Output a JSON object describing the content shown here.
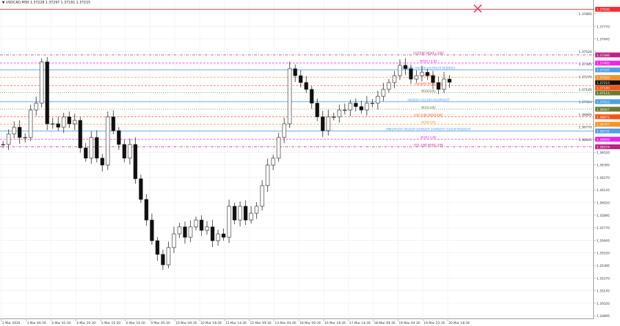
{
  "header": {
    "arrow": "▼",
    "text": "USDCAD,M30  1.37228 1.37297 1.37191 1.37215"
  },
  "overlay": {
    "icon": "x-mark-icon",
    "color": "#e8204a"
  },
  "chart_data": {
    "type": "candlestick",
    "symbol": "USDCAD",
    "timeframe": "M30",
    "ylim": [
      1.3482,
      1.3817
    ],
    "y_ticks": [
      "1.37895",
      "1.37770",
      "1.37645",
      "1.37520",
      "1.37395",
      "1.37270",
      "1.37145",
      "1.37020",
      "1.36895",
      "1.36770",
      "1.36645",
      "1.36520",
      "1.36395",
      "1.36270",
      "1.36145",
      "1.36020",
      "1.35895",
      "1.35770",
      "1.35645",
      "1.35520",
      "1.35395",
      "1.35270",
      "1.35145",
      "1.35020",
      "1.34895"
    ],
    "x_ticks": [
      "2 Mar 2026",
      "3 Mar 06:30",
      "4 Mar 01:30",
      "4 Mar 20:30",
      "5 Mar 15:30",
      "6 Mar 10:30",
      "9 Mar 05:30",
      "10 Mar 00:30",
      "10 Mar 19:30",
      "11 Mar 14:30",
      "12 Mar 09:30",
      "13 Mar 04:30",
      "16 Mar 00:30",
      "16 Mar 19:30",
      "17 Mar 14:30",
      "18 Mar 09:30",
      "19 Mar 04:30",
      "19 Mar 23:30",
      "20 Mar 18:30"
    ],
    "grid": true,
    "closes": [
      1.36597,
      1.367,
      1.36768,
      1.36666,
      1.36666,
      1.36939,
      1.37007,
      1.37417,
      1.36802,
      1.36802,
      1.36768,
      1.36871,
      1.36802,
      1.36836,
      1.36563,
      1.36461,
      1.36666,
      1.36461,
      1.36392,
      1.36871,
      1.36734,
      1.36597,
      1.36461,
      1.36597,
      1.36256,
      1.36051,
      1.35846,
      1.35641,
      1.35505,
      1.35402,
      1.35573,
      1.35709,
      1.35778,
      1.35675,
      1.35778,
      1.35846,
      1.35744,
      1.35778,
      1.35641,
      1.35709,
      1.35675,
      1.35983,
      1.35846,
      1.35983,
      1.35846,
      1.35914,
      1.35983,
      1.36188,
      1.36392,
      1.36461,
      1.36666,
      1.36802,
      1.37349,
      1.3728,
      1.37212,
      1.37144,
      1.37007,
      1.36871,
      1.36734,
      1.36871,
      1.36871,
      1.36939,
      1.36939,
      1.37007,
      1.36973,
      1.36939,
      1.37007,
      1.37007,
      1.37075,
      1.37144,
      1.37212,
      1.3728,
      1.37383,
      1.37349,
      1.37246,
      1.3728,
      1.37314,
      1.3728,
      1.37212,
      1.37144,
      1.37246,
      1.37215
    ],
    "levels": [
      {
        "price": 1.37939,
        "label": "",
        "badge": "1.37939",
        "color": "#ff2a2a",
        "style": "solid"
      },
      {
        "price": 1.37486,
        "label": "H1[5/8] M30[+2/8]",
        "badge": "1.37486",
        "color": "#c0208a",
        "style": "dashdot"
      },
      {
        "price": 1.37405,
        "label": "M30[+1/8]",
        "badge": "1.37405",
        "color": "#f020f0",
        "style": "dashed"
      },
      {
        "price": 1.37337,
        "label": "H4[0/8] H4[8/8] H1PIVOT M30R03",
        "badge": "1.37337",
        "color": "#4aa0f0",
        "style": "solid"
      },
      {
        "price": 1.37262,
        "label": "M30[8/8]",
        "badge": "1.37262",
        "color": "#ff9020",
        "style": "dashed"
      },
      {
        "price": 1.37215,
        "label": "",
        "badge": "1.37215",
        "color": "#111111",
        "style": "none"
      },
      {
        "price": 1.3718,
        "label": "H4[8/8] M30[7/8]",
        "badge": "1.37180",
        "color": "#ff5010",
        "style": "dashed"
      },
      {
        "price": 1.37111,
        "label": "M30[6/8]",
        "badge": "1.37111",
        "color": "#6b7a30",
        "style": "dotted"
      },
      {
        "price": 1.37022,
        "label": "H4[6/8] H1[3/8] M30PIVOT",
        "badge": "1.37022",
        "color": "#4aa0f0",
        "style": "solid"
      },
      {
        "price": 1.36947,
        "label": "M30[4/8]",
        "badge": "1.36947",
        "color": "#6b7a30",
        "style": "dotted"
      },
      {
        "price": 1.36872,
        "label": "H1[-1/8] M30[3/8]",
        "badge": "1.36872",
        "color": "#ff5010",
        "style": "dashed"
      },
      {
        "price": 1.36797,
        "label": "M30[2/8]",
        "badge": "1.36797",
        "color": "#ff9020",
        "style": "dashed"
      },
      {
        "price": 1.36731,
        "label": "MN1PIVOT W1SUP D1PIVOT H4PIVOT H1SUP M30SUP",
        "badge": "1.36731",
        "color": "#4aa0f0",
        "style": "solid"
      },
      {
        "price": 1.36649,
        "label": "M30[-1/8]",
        "badge": "1.36649",
        "color": "#f020f0",
        "style": "dashed"
      },
      {
        "price": 1.36574,
        "label": "H1[-1/8] M30[-2/8]",
        "badge": "1.36574",
        "color": "#c0208a",
        "style": "dashdot"
      }
    ]
  }
}
